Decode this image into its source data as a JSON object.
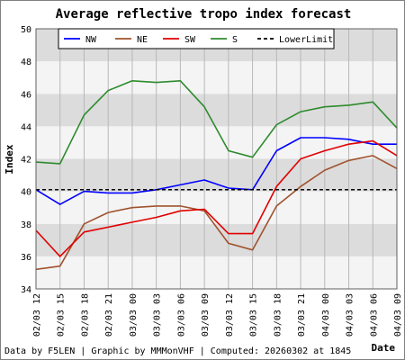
{
  "chart_data": {
    "type": "line",
    "title": "Average reflective tropo index forecast",
    "xlabel": "Date",
    "ylabel": "Index",
    "ylim": [
      34,
      50
    ],
    "yticks": [
      34,
      36,
      38,
      40,
      42,
      44,
      46,
      48,
      50
    ],
    "x": [
      "02/03 12",
      "02/03 15",
      "02/03 18",
      "02/03 21",
      "03/03 00",
      "03/03 03",
      "03/03 06",
      "03/03 09",
      "03/03 12",
      "03/03 15",
      "03/03 18",
      "03/03 21",
      "04/03 00",
      "04/03 03",
      "04/03 06",
      "04/03 09"
    ],
    "grid": true,
    "legend_position": "top",
    "series": [
      {
        "name": "NW",
        "color": "#0000ff",
        "style": "solid",
        "values": [
          40.1,
          39.2,
          40.0,
          39.9,
          39.9,
          40.1,
          40.4,
          40.7,
          40.2,
          40.1,
          42.5,
          43.3,
          43.3,
          43.2,
          42.9,
          42.9
        ]
      },
      {
        "name": "NE",
        "color": "#a0522d",
        "style": "solid",
        "values": [
          35.2,
          35.4,
          38.0,
          38.7,
          39.0,
          39.1,
          39.1,
          38.8,
          36.8,
          36.4,
          39.1,
          40.3,
          41.3,
          41.9,
          42.2,
          41.4
        ]
      },
      {
        "name": "SW",
        "color": "#e00000",
        "style": "solid",
        "values": [
          37.6,
          36.0,
          37.5,
          37.8,
          38.1,
          38.4,
          38.8,
          38.9,
          37.4,
          37.4,
          40.3,
          42.0,
          42.5,
          42.9,
          43.1,
          42.2
        ]
      },
      {
        "name": "S",
        "color": "#2e8b2e",
        "style": "solid",
        "values": [
          41.8,
          41.7,
          44.7,
          46.2,
          46.8,
          46.7,
          46.8,
          45.2,
          42.5,
          42.1,
          44.1,
          44.9,
          45.2,
          45.3,
          45.5,
          43.9
        ]
      },
      {
        "name": "LowerLimit",
        "color": "#000000",
        "style": "dashed",
        "values": [
          40.1,
          40.1,
          40.1,
          40.1,
          40.1,
          40.1,
          40.1,
          40.1,
          40.1,
          40.1,
          40.1,
          40.1,
          40.1,
          40.1,
          40.1,
          40.1
        ]
      }
    ],
    "band_colors": [
      "#dcdcdc",
      "#f4f4f4"
    ]
  },
  "footer": {
    "credits": "Data by F5LEN | Graphic by MMMonVHF | Computed: 20260302 at 1845"
  }
}
